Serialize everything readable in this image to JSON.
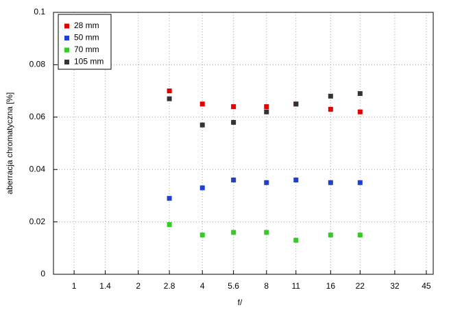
{
  "chart_data": {
    "type": "scatter",
    "xlabel": "f/",
    "ylabel": "aberracja chromatyczna [%]",
    "x": [
      2.8,
      4,
      5.6,
      8,
      11,
      16,
      22
    ],
    "series": [
      {
        "name": "28 mm",
        "color": "#e00000",
        "values": [
          0.07,
          0.065,
          0.064,
          0.064,
          0.065,
          0.063,
          0.062
        ]
      },
      {
        "name": "50 mm",
        "color": "#1f3fd0",
        "values": [
          0.029,
          0.033,
          0.036,
          0.035,
          0.036,
          0.035,
          0.035
        ]
      },
      {
        "name": "70 mm",
        "color": "#33cc22",
        "values": [
          0.019,
          0.015,
          0.016,
          0.016,
          0.013,
          0.015,
          0.015
        ]
      },
      {
        "name": "105 mm",
        "color": "#333333",
        "values": [
          0.067,
          0.057,
          0.058,
          0.062,
          0.065,
          0.068,
          0.069
        ]
      }
    ],
    "xlim": [
      0.8,
      48.5
    ],
    "xticks": [
      1,
      1.4,
      2,
      2.8,
      4,
      5.6,
      8,
      11,
      16,
      22,
      32,
      45
    ],
    "log_x": true,
    "ylim": [
      0,
      0.1
    ],
    "yticks": [
      0,
      0.02,
      0.04,
      0.06,
      0.08,
      0.1
    ],
    "grid": true,
    "legend": "upper left"
  }
}
